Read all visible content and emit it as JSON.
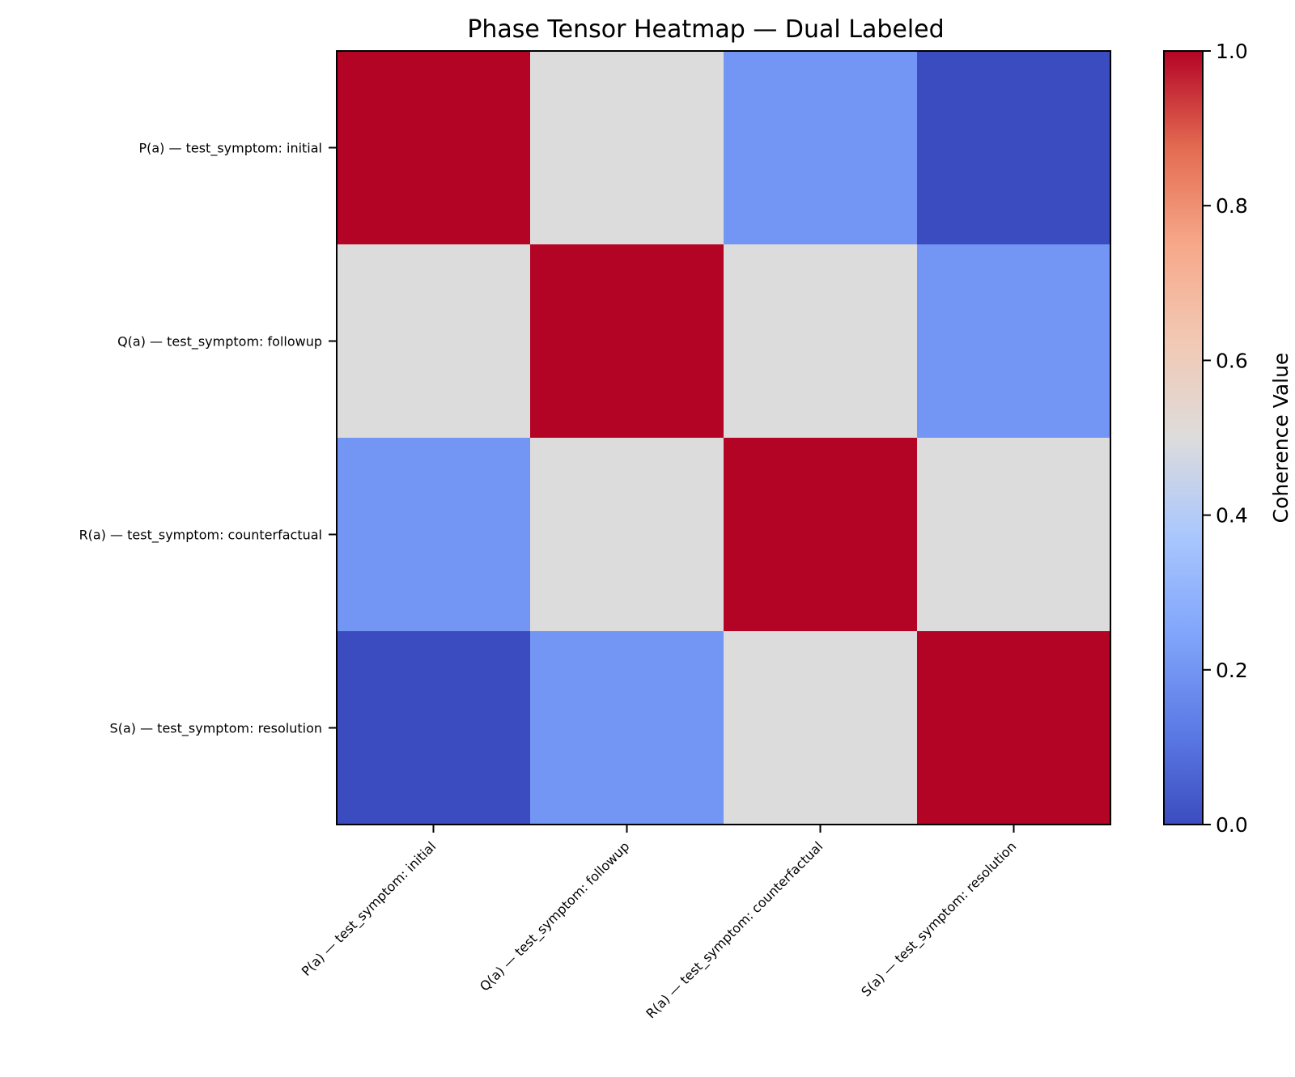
{
  "chart_data": {
    "type": "heatmap",
    "title": "Phase Tensor Heatmap — Dual Labeled",
    "row_labels": [
      "P(a) — test_symptom: initial",
      "Q(a) — test_symptom: followup",
      "R(a) — test_symptom: counterfactual",
      "S(a) — test_symptom: resolution"
    ],
    "col_labels": [
      "P(a) — test_symptom: initial",
      "Q(a) — test_symptom: followup",
      "R(a) — test_symptom: counterfactual",
      "S(a) — test_symptom: resolution"
    ],
    "values": [
      [
        1.0,
        0.5,
        0.2,
        0.0
      ],
      [
        0.5,
        1.0,
        0.5,
        0.2
      ],
      [
        0.2,
        0.5,
        1.0,
        0.5
      ],
      [
        0.0,
        0.2,
        0.5,
        1.0
      ]
    ],
    "colormap": "coolwarm",
    "colorbar": {
      "label": "Coherence Value",
      "range": [
        0.0,
        1.0
      ],
      "ticks": [
        "0.0",
        "0.2",
        "0.4",
        "0.6",
        "0.8",
        "1.0"
      ]
    }
  }
}
